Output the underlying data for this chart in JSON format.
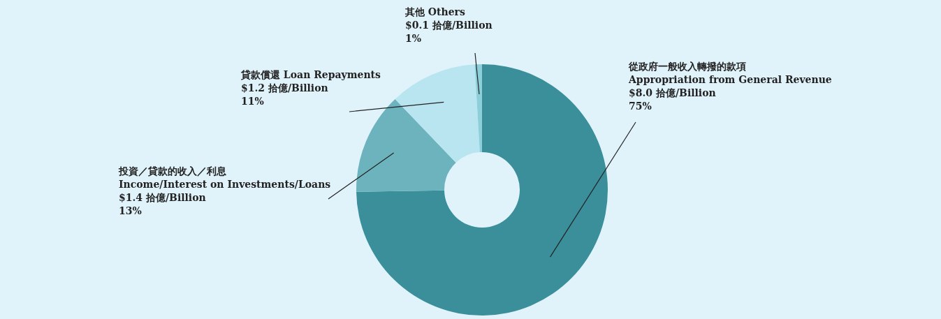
{
  "chart_data": {
    "type": "donut",
    "categories": [
      "從政府一般收入轉撥的款項\nAppropriation from General Revenue",
      "投資／貸款的收入／利息\nIncome/Interest on Investments/Loans",
      "貸款償還 Loan Repayments",
      "其他 Others"
    ],
    "values": [
      8.0,
      1.4,
      1.2,
      0.1
    ],
    "colors": [
      "#3a8f9b",
      "#6db3bd",
      "#b9e5f0",
      "#8ccfd9"
    ],
    "value_labels": [
      "$8.0 拾億/Billion\n75%",
      "$1.4 拾億/Billion\n13%",
      "$1.2 拾億/Billion\n11%",
      "$0.1 拾億/Billion\n1%"
    ]
  }
}
